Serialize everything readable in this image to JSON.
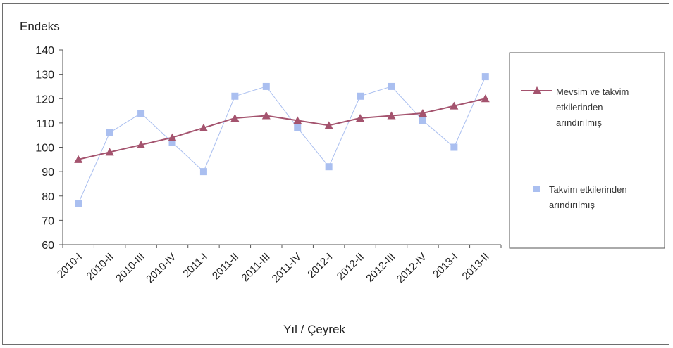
{
  "chart_data": {
    "type": "line",
    "ylabel": "Endeks",
    "xlabel": "Yıl / Çeyrek",
    "ylim": [
      60,
      140
    ],
    "yticks": [
      60,
      70,
      80,
      90,
      100,
      110,
      120,
      130,
      140
    ],
    "categories": [
      "2010-I",
      "2010-II",
      "2010-III",
      "2010-IV",
      "2011-I",
      "2011-II",
      "2011-III",
      "2011-IV",
      "2012-I",
      "2012-II",
      "2012-III",
      "2012-IV",
      "2013-I",
      "2013-II"
    ],
    "series": [
      {
        "name": "Mevsim ve takvim etkilerinden arındırılmış",
        "values": [
          95,
          98,
          101,
          104,
          108,
          112,
          113,
          111,
          109,
          112,
          113,
          114,
          117,
          120
        ],
        "color": "#a4536e",
        "marker": "triangle"
      },
      {
        "name": "Takvim etkilerinden arındırılmış",
        "values": [
          77,
          106,
          114,
          102,
          90,
          121,
          125,
          108,
          92,
          121,
          125,
          111,
          100,
          129
        ],
        "color": "#aabff0",
        "marker": "square"
      }
    ],
    "grid": false,
    "legend": "right"
  }
}
